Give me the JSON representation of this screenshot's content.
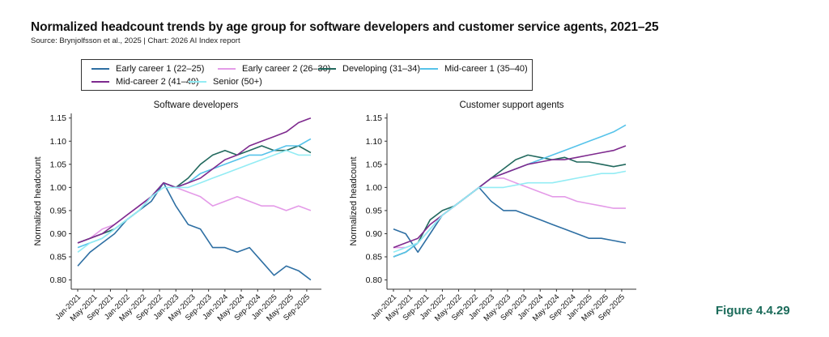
{
  "title": "Normalized headcount trends by age group for software developers and customer service agents, 2021–25",
  "source": "Source: Brynjolfsson et al., 2025 | Chart: 2026 AI Index report",
  "figure_label": "Figure 4.4.29",
  "legend": [
    {
      "label": "Early career 1 (22–25)",
      "color": "#2e6fa3"
    },
    {
      "label": "Early career 2 (26–30)",
      "color": "#e49be8"
    },
    {
      "label": "Developing (31–34)",
      "color": "#22695e"
    },
    {
      "label": "Mid-career 1 (35–40)",
      "color": "#56c3ea"
    },
    {
      "label": "Mid-career 2 (41–49)",
      "color": "#7e2a8e"
    },
    {
      "label": "Senior (50+)",
      "color": "#93ecf4"
    }
  ],
  "chart_data": [
    {
      "type": "line",
      "title": "Software developers",
      "ylabel": "Normalized headcount",
      "xlabel": "",
      "ylim": [
        0.78,
        1.16
      ],
      "yticks": [
        "0.80",
        "0.85",
        "0.90",
        "0.95",
        "1.00",
        "1.05",
        "1.10",
        "1.15"
      ],
      "xticks": [
        "Jan-2021",
        "May-2021",
        "Sep-2021",
        "Jan-2022",
        "May-2022",
        "Sep-2022",
        "Jan-2023",
        "May-2023",
        "Sep-2023",
        "Jan-2024",
        "May-2024",
        "Sep-2024",
        "Jan-2025",
        "May-2025",
        "Sep-2025"
      ],
      "x": [
        "2021-01",
        "2021-04",
        "2021-07",
        "2021-10",
        "2022-01",
        "2022-04",
        "2022-07",
        "2022-10",
        "2023-01",
        "2023-04",
        "2023-07",
        "2023-10",
        "2024-01",
        "2024-04",
        "2024-07",
        "2024-10",
        "2025-01",
        "2025-04",
        "2025-07",
        "2025-10"
      ],
      "grid": false,
      "series": [
        {
          "name": "Early career 1 (22–25)",
          "color": "#2e6fa3",
          "values": [
            0.83,
            0.86,
            0.88,
            0.9,
            0.93,
            0.95,
            0.97,
            1.01,
            0.96,
            0.92,
            0.91,
            0.87,
            0.87,
            0.86,
            0.87,
            0.84,
            0.81,
            0.83,
            0.82,
            0.8
          ]
        },
        {
          "name": "Early career 2 (26–30)",
          "color": "#e49be8",
          "values": [
            0.88,
            0.89,
            0.91,
            0.92,
            0.94,
            0.96,
            0.98,
            1.01,
            1.0,
            0.99,
            0.98,
            0.96,
            0.97,
            0.98,
            0.97,
            0.96,
            0.96,
            0.95,
            0.96,
            0.95
          ]
        },
        {
          "name": "Developing (31–34)",
          "color": "#22695e",
          "values": [
            0.88,
            0.89,
            0.9,
            0.91,
            0.93,
            0.95,
            0.98,
            1.01,
            1.0,
            1.02,
            1.05,
            1.07,
            1.08,
            1.07,
            1.08,
            1.09,
            1.08,
            1.08,
            1.09,
            1.075
          ]
        },
        {
          "name": "Mid-career 1 (35–40)",
          "color": "#56c3ea",
          "values": [
            0.87,
            0.88,
            0.89,
            0.91,
            0.93,
            0.95,
            0.98,
            1.01,
            1.0,
            1.01,
            1.03,
            1.04,
            1.05,
            1.06,
            1.07,
            1.07,
            1.08,
            1.09,
            1.09,
            1.105
          ]
        },
        {
          "name": "Mid-career 2 (41–49)",
          "color": "#7e2a8e",
          "values": [
            0.88,
            0.89,
            0.9,
            0.92,
            0.94,
            0.96,
            0.98,
            1.01,
            1.0,
            1.01,
            1.02,
            1.04,
            1.06,
            1.07,
            1.09,
            1.1,
            1.11,
            1.12,
            1.14,
            1.15
          ]
        },
        {
          "name": "Senior (50+)",
          "color": "#93ecf4",
          "values": [
            0.86,
            0.88,
            0.89,
            0.91,
            0.93,
            0.95,
            0.98,
            1.0,
            1.0,
            1.0,
            1.01,
            1.02,
            1.03,
            1.04,
            1.05,
            1.06,
            1.07,
            1.08,
            1.07,
            1.07
          ]
        }
      ]
    },
    {
      "type": "line",
      "title": "Customer support agents",
      "ylabel": "Normalized headcount",
      "xlabel": "",
      "ylim": [
        0.78,
        1.16
      ],
      "yticks": [
        "0.80",
        "0.85",
        "0.90",
        "0.95",
        "1.00",
        "1.05",
        "1.10",
        "1.15"
      ],
      "xticks": [
        "Jan-2021",
        "May-2021",
        "Sep-2021",
        "Jan-2022",
        "May-2022",
        "Sep-2022",
        "Jan-2023",
        "May-2023",
        "Sep-2023",
        "Jan-2024",
        "May-2024",
        "Sep-2024",
        "Jan-2025",
        "May-2025",
        "Sep-2025"
      ],
      "x": [
        "2021-01",
        "2021-04",
        "2021-07",
        "2021-10",
        "2022-01",
        "2022-04",
        "2022-07",
        "2022-10",
        "2023-01",
        "2023-04",
        "2023-07",
        "2023-10",
        "2024-01",
        "2024-04",
        "2024-07",
        "2024-10",
        "2025-01",
        "2025-04",
        "2025-07",
        "2025-10"
      ],
      "grid": false,
      "series": [
        {
          "name": "Early career 1 (22–25)",
          "color": "#2e6fa3",
          "values": [
            0.91,
            0.9,
            0.86,
            0.9,
            0.94,
            0.96,
            0.98,
            1.0,
            0.97,
            0.95,
            0.95,
            0.94,
            0.93,
            0.92,
            0.91,
            0.9,
            0.89,
            0.89,
            0.885,
            0.88
          ]
        },
        {
          "name": "Early career 2 (26–30)",
          "color": "#e49be8",
          "values": [
            0.87,
            0.87,
            0.88,
            0.91,
            0.94,
            0.96,
            0.98,
            1.0,
            1.02,
            1.02,
            1.01,
            1.0,
            0.99,
            0.98,
            0.98,
            0.97,
            0.965,
            0.96,
            0.955,
            0.955
          ]
        },
        {
          "name": "Developing (31–34)",
          "color": "#22695e",
          "values": [
            0.85,
            0.86,
            0.88,
            0.93,
            0.95,
            0.96,
            0.98,
            1.0,
            1.02,
            1.04,
            1.06,
            1.07,
            1.065,
            1.06,
            1.065,
            1.055,
            1.055,
            1.05,
            1.045,
            1.05
          ]
        },
        {
          "name": "Mid-career 1 (35–40)",
          "color": "#56c3ea",
          "values": [
            0.85,
            0.86,
            0.88,
            0.91,
            0.94,
            0.96,
            0.98,
            1.0,
            1.02,
            1.03,
            1.04,
            1.05,
            1.06,
            1.07,
            1.08,
            1.09,
            1.1,
            1.11,
            1.12,
            1.135
          ]
        },
        {
          "name": "Mid-career 2 (41–49)",
          "color": "#7e2a8e",
          "values": [
            0.87,
            0.88,
            0.89,
            0.92,
            0.94,
            0.96,
            0.98,
            1.0,
            1.02,
            1.03,
            1.04,
            1.05,
            1.055,
            1.06,
            1.06,
            1.065,
            1.07,
            1.075,
            1.08,
            1.09
          ]
        },
        {
          "name": "Senior (50+)",
          "color": "#93ecf4",
          "values": [
            0.86,
            0.87,
            0.88,
            0.91,
            0.94,
            0.96,
            0.98,
            1.0,
            1.0,
            1.0,
            1.005,
            1.01,
            1.01,
            1.01,
            1.015,
            1.02,
            1.025,
            1.03,
            1.03,
            1.035
          ]
        }
      ]
    }
  ]
}
